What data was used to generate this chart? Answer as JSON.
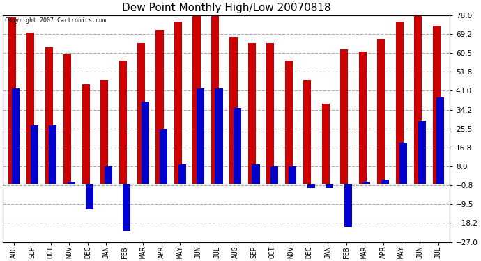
{
  "title": "Dew Point Monthly High/Low 20070818",
  "copyright": "Copyright 2007 Cartronics.com",
  "categories": [
    "AUG",
    "SEP",
    "OCT",
    "NOV",
    "DEC",
    "JAN",
    "FEB",
    "MAR",
    "APR",
    "MAY",
    "JUN",
    "JUL",
    "AUG",
    "SEP",
    "OCT",
    "NOV",
    "DEC",
    "JAN",
    "FEB",
    "MAR",
    "APR",
    "MAY",
    "JUN",
    "JUL"
  ],
  "highs": [
    77.0,
    70.0,
    63.0,
    60.0,
    46.0,
    48.0,
    57.0,
    65.0,
    71.0,
    75.0,
    78.0,
    78.0,
    68.0,
    65.0,
    65.0,
    57.0,
    48.0,
    37.0,
    62.0,
    61.0,
    67.0,
    75.0,
    78.0,
    73.0
  ],
  "lows": [
    44.0,
    27.0,
    27.0,
    1.0,
    -12.0,
    8.0,
    -22.0,
    38.0,
    25.0,
    9.0,
    44.0,
    44.0,
    35.0,
    9.0,
    8.0,
    8.0,
    -2.0,
    -2.0,
    -20.0,
    1.0,
    2.0,
    19.0,
    29.0,
    40.0
  ],
  "high_color": "#cc0000",
  "low_color": "#0000cc",
  "yticks": [
    78.0,
    69.2,
    60.5,
    51.8,
    43.0,
    34.2,
    25.5,
    16.8,
    8.0,
    -0.8,
    -9.5,
    -18.2,
    -27.0
  ],
  "ylim": [
    -27.0,
    78.0
  ],
  "background_color": "#ffffff",
  "plot_bg_color": "#ffffff",
  "grid_color": "#aaaaaa",
  "title_fontsize": 11,
  "bar_width": 0.42
}
